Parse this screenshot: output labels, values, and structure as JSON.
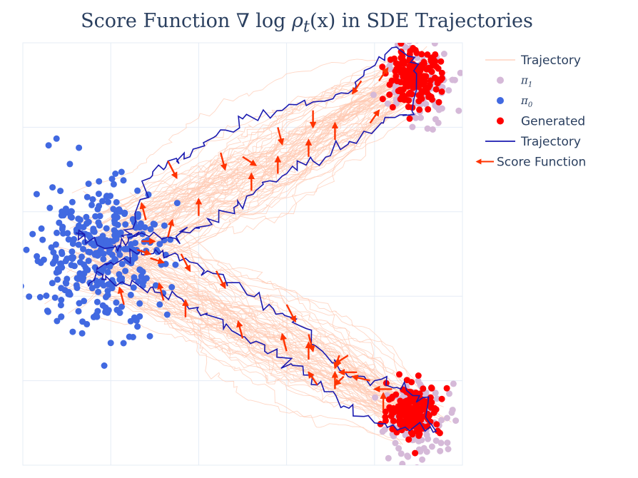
{
  "chart_data": {
    "type": "scatter",
    "title": "Score Function ∇ log ρ_t(x) in SDE Trajectories",
    "title_parts": {
      "prefix": "Score Function ∇ log ",
      "math": "ρ",
      "sub": "t",
      "suffix": "(x)",
      "tail": " in SDE Trajectories"
    },
    "xlabel": "",
    "ylabel": "",
    "xlim": [
      0,
      1
    ],
    "ylim": [
      0,
      1
    ],
    "grid": true,
    "legend_position": "right",
    "legend": [
      {
        "label": "Trajectory",
        "kind": "line",
        "color": "#ffc9b3"
      },
      {
        "label": "π",
        "sub": "1",
        "kind": "marker",
        "color": "#d5b9d8"
      },
      {
        "label": "π",
        "sub": "0",
        "kind": "marker",
        "color": "#4169e1"
      },
      {
        "label": "Generated",
        "kind": "marker",
        "color": "#ff0000"
      },
      {
        "label": "Trajectory",
        "kind": "line",
        "color": "#1a1ab0"
      },
      {
        "label": "Score Function",
        "kind": "arrow",
        "color": "#ff3300"
      }
    ],
    "series": [
      {
        "name": "π1",
        "color": "#d5b9d8",
        "clusters": [
          {
            "center": [
              0.9,
              0.91
            ],
            "spread": [
              0.04,
              0.05
            ],
            "count": 110
          },
          {
            "center": [
              0.9,
              0.1
            ],
            "spread": [
              0.045,
              0.05
            ],
            "count": 110
          }
        ]
      },
      {
        "name": "π0",
        "color": "#4169e1",
        "clusters": [
          {
            "center": [
              0.17,
              0.5
            ],
            "spread": [
              0.075,
              0.09
            ],
            "count": 330
          }
        ]
      },
      {
        "name": "Generated",
        "color": "#ff0000",
        "clusters": [
          {
            "center": [
              0.89,
              0.92
            ],
            "spread": [
              0.03,
              0.03
            ],
            "count": 180
          },
          {
            "center": [
              0.89,
              0.13
            ],
            "spread": [
              0.03,
              0.03
            ],
            "count": 180
          }
        ]
      }
    ],
    "trajectory_bundles": [
      {
        "color": "#ffc9b3",
        "start": [
          0.17,
          0.5
        ],
        "end": [
          0.9,
          0.92
        ],
        "count": 70,
        "noise": 0.014
      },
      {
        "color": "#ffc9b3",
        "start": [
          0.17,
          0.5
        ],
        "end": [
          0.9,
          0.12
        ],
        "count": 70,
        "noise": 0.014
      }
    ],
    "highlighted_trajectories": [
      {
        "color": "#1a1ab0",
        "points": [
          [
            0.23,
            0.54
          ],
          [
            0.25,
            0.56
          ],
          [
            0.29,
            0.68
          ],
          [
            0.33,
            0.72
          ],
          [
            0.38,
            0.73
          ],
          [
            0.44,
            0.78
          ],
          [
            0.5,
            0.82
          ],
          [
            0.59,
            0.84
          ],
          [
            0.66,
            0.86
          ],
          [
            0.74,
            0.88
          ],
          [
            0.79,
            0.94
          ],
          [
            0.85,
            0.99
          ],
          [
            0.9,
            0.95
          ],
          [
            0.89,
            0.83
          ],
          [
            0.82,
            0.81
          ],
          [
            0.74,
            0.76
          ],
          [
            0.66,
            0.72
          ],
          [
            0.6,
            0.69
          ],
          [
            0.53,
            0.65
          ],
          [
            0.48,
            0.61
          ],
          [
            0.43,
            0.57
          ],
          [
            0.38,
            0.55
          ],
          [
            0.33,
            0.54
          ],
          [
            0.27,
            0.55
          ],
          [
            0.24,
            0.53
          ],
          [
            0.21,
            0.52
          ],
          [
            0.15,
            0.53
          ],
          [
            0.12,
            0.55
          ]
        ]
      },
      {
        "color": "#1a1ab0",
        "points": [
          [
            0.17,
            0.47
          ],
          [
            0.2,
            0.48
          ],
          [
            0.26,
            0.5
          ],
          [
            0.31,
            0.5
          ],
          [
            0.37,
            0.49
          ],
          [
            0.42,
            0.46
          ],
          [
            0.5,
            0.42
          ],
          [
            0.57,
            0.37
          ],
          [
            0.63,
            0.33
          ],
          [
            0.69,
            0.26
          ],
          [
            0.74,
            0.21
          ],
          [
            0.8,
            0.2
          ],
          [
            0.86,
            0.18
          ],
          [
            0.91,
            0.16
          ],
          [
            0.94,
            0.08
          ],
          [
            0.87,
            0.09
          ],
          [
            0.8,
            0.1
          ],
          [
            0.73,
            0.14
          ],
          [
            0.67,
            0.19
          ],
          [
            0.61,
            0.24
          ],
          [
            0.55,
            0.27
          ],
          [
            0.49,
            0.31
          ],
          [
            0.42,
            0.36
          ],
          [
            0.35,
            0.4
          ],
          [
            0.29,
            0.42
          ],
          [
            0.23,
            0.43
          ],
          [
            0.18,
            0.44
          ],
          [
            0.15,
            0.43
          ]
        ]
      }
    ],
    "score_arrows": [
      {
        "x": 0.33,
        "y": 0.72,
        "dx": 0.02,
        "dy": -0.04
      },
      {
        "x": 0.45,
        "y": 0.74,
        "dx": 0.01,
        "dy": -0.04
      },
      {
        "x": 0.5,
        "y": 0.73,
        "dx": 0.03,
        "dy": -0.02
      },
      {
        "x": 0.58,
        "y": 0.8,
        "dx": 0.01,
        "dy": -0.04
      },
      {
        "x": 0.66,
        "y": 0.84,
        "dx": 0.0,
        "dy": -0.04
      },
      {
        "x": 0.77,
        "y": 0.91,
        "dx": -0.02,
        "dy": -0.03
      },
      {
        "x": 0.81,
        "y": 0.91,
        "dx": 0.02,
        "dy": 0.03
      },
      {
        "x": 0.79,
        "y": 0.81,
        "dx": 0.02,
        "dy": 0.03
      },
      {
        "x": 0.71,
        "y": 0.77,
        "dx": 0.0,
        "dy": 0.04
      },
      {
        "x": 0.65,
        "y": 0.73,
        "dx": 0.0,
        "dy": 0.04
      },
      {
        "x": 0.58,
        "y": 0.69,
        "dx": 0.0,
        "dy": 0.04
      },
      {
        "x": 0.52,
        "y": 0.65,
        "dx": 0.0,
        "dy": 0.04
      },
      {
        "x": 0.4,
        "y": 0.59,
        "dx": 0.0,
        "dy": 0.04
      },
      {
        "x": 0.33,
        "y": 0.54,
        "dx": 0.01,
        "dy": 0.04
      },
      {
        "x": 0.28,
        "y": 0.58,
        "dx": -0.01,
        "dy": 0.04
      },
      {
        "x": 0.27,
        "y": 0.53,
        "dx": 0.03,
        "dy": 0.0
      },
      {
        "x": 0.26,
        "y": 0.51,
        "dx": 0.03,
        "dy": -0.01
      },
      {
        "x": 0.29,
        "y": 0.49,
        "dx": 0.03,
        "dy": -0.01
      },
      {
        "x": 0.36,
        "y": 0.5,
        "dx": 0.02,
        "dy": -0.04
      },
      {
        "x": 0.44,
        "y": 0.46,
        "dx": 0.02,
        "dy": -0.04
      },
      {
        "x": 0.6,
        "y": 0.38,
        "dx": 0.02,
        "dy": -0.04
      },
      {
        "x": 0.65,
        "y": 0.31,
        "dx": 0.01,
        "dy": -0.04
      },
      {
        "x": 0.6,
        "y": 0.27,
        "dx": -0.01,
        "dy": 0.04
      },
      {
        "x": 0.65,
        "y": 0.25,
        "dx": 0.0,
        "dy": 0.04
      },
      {
        "x": 0.5,
        "y": 0.3,
        "dx": -0.01,
        "dy": 0.04
      },
      {
        "x": 0.37,
        "y": 0.35,
        "dx": 0.0,
        "dy": 0.04
      },
      {
        "x": 0.32,
        "y": 0.39,
        "dx": -0.01,
        "dy": 0.04
      },
      {
        "x": 0.23,
        "y": 0.38,
        "dx": -0.01,
        "dy": 0.04
      },
      {
        "x": 0.73,
        "y": 0.21,
        "dx": -0.02,
        "dy": -0.02
      },
      {
        "x": 0.74,
        "y": 0.26,
        "dx": -0.03,
        "dy": -0.02
      },
      {
        "x": 0.76,
        "y": 0.22,
        "dx": -0.04,
        "dy": 0.0
      },
      {
        "x": 0.79,
        "y": 0.2,
        "dx": -0.04,
        "dy": 0.01
      },
      {
        "x": 0.84,
        "y": 0.18,
        "dx": -0.04,
        "dy": 0.0
      },
      {
        "x": 0.82,
        "y": 0.13,
        "dx": 0.0,
        "dy": 0.04
      },
      {
        "x": 0.71,
        "y": 0.18,
        "dx": 0.0,
        "dy": 0.04
      },
      {
        "x": 0.67,
        "y": 0.19,
        "dx": -0.02,
        "dy": 0.03
      },
      {
        "x": 0.72,
        "y": 0.26,
        "dx": -0.01,
        "dy": -0.03
      }
    ]
  }
}
